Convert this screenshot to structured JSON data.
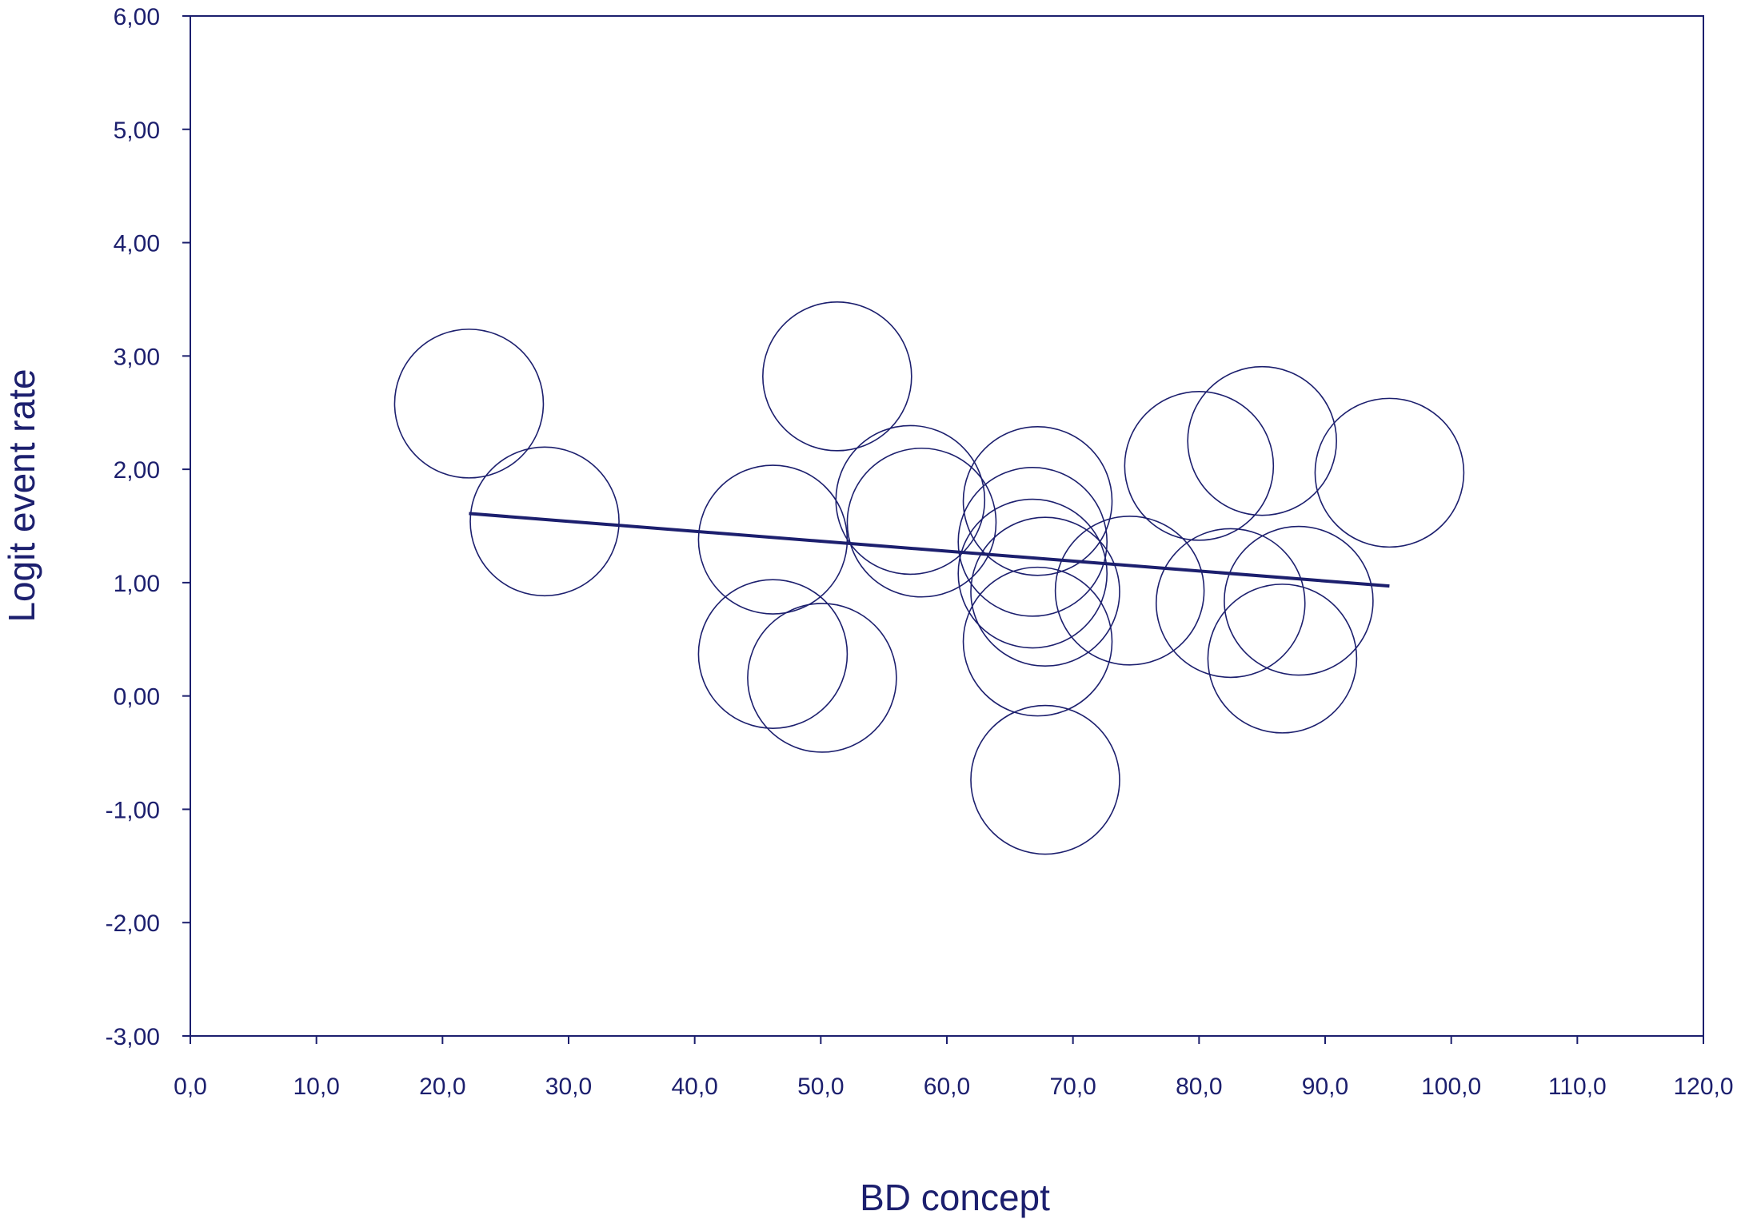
{
  "chart_data": {
    "type": "scatter",
    "title": "",
    "xlabel": "BD concept",
    "ylabel": "Logit event rate",
    "xlim": [
      0,
      120
    ],
    "ylim": [
      -3,
      6
    ],
    "x_ticks": [
      "0,0",
      "10,0",
      "20,0",
      "30,0",
      "40,0",
      "50,0",
      "60,0",
      "70,0",
      "80,0",
      "90,0",
      "100,0",
      "110,0",
      "120,0"
    ],
    "y_ticks": [
      "-3,00",
      "-2,00",
      "-1,00",
      "0,00",
      "1,00",
      "2,00",
      "3,00",
      "4,00",
      "5,00",
      "6,00"
    ],
    "grid": false,
    "marker": "open circle (bubble)",
    "points": [
      {
        "x": 22.1,
        "y": 2.58
      },
      {
        "x": 28.1,
        "y": 1.54
      },
      {
        "x": 46.2,
        "y": 1.38
      },
      {
        "x": 46.2,
        "y": 0.37
      },
      {
        "x": 50.1,
        "y": 0.16
      },
      {
        "x": 51.3,
        "y": 2.82
      },
      {
        "x": 57.1,
        "y": 1.73
      },
      {
        "x": 58.0,
        "y": 1.53
      },
      {
        "x": 67.2,
        "y": 1.72
      },
      {
        "x": 66.8,
        "y": 1.36
      },
      {
        "x": 66.8,
        "y": 1.08
      },
      {
        "x": 67.8,
        "y": 0.92
      },
      {
        "x": 67.2,
        "y": 0.48
      },
      {
        "x": 67.8,
        "y": -0.74
      },
      {
        "x": 74.5,
        "y": 0.93
      },
      {
        "x": 80.0,
        "y": 2.03
      },
      {
        "x": 82.5,
        "y": 0.82
      },
      {
        "x": 85.0,
        "y": 2.25
      },
      {
        "x": 86.6,
        "y": 0.33
      },
      {
        "x": 87.9,
        "y": 0.84
      },
      {
        "x": 95.1,
        "y": 1.97
      }
    ],
    "regression_line": {
      "x": [
        22.1,
        95.1
      ],
      "y": [
        1.61,
        0.97
      ]
    },
    "colors": {
      "primary": "#1c1f6e"
    }
  }
}
